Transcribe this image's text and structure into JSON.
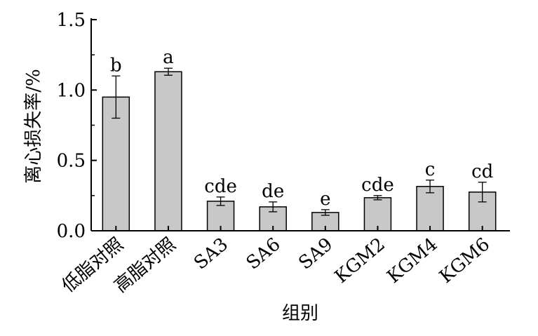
{
  "chart_data": {
    "type": "bar",
    "categories": [
      "低脂对照",
      "高脂对照",
      "SA3",
      "SA6",
      "SA9",
      "KGM2",
      "KGM4",
      "KGM6"
    ],
    "values": [
      0.95,
      1.13,
      0.21,
      0.17,
      0.13,
      0.235,
      0.315,
      0.275
    ],
    "errors": [
      0.15,
      0.025,
      0.03,
      0.035,
      0.02,
      0.015,
      0.045,
      0.07
    ],
    "significance_labels": [
      "b",
      "a",
      "cde",
      "de",
      "e",
      "cde",
      "c",
      "cd"
    ],
    "xlabel": "组别",
    "ylabel": "离心损失率/%",
    "ylim": [
      0,
      1.5
    ],
    "yticks": [
      "0.0",
      "0.5",
      "1.0",
      "1.5"
    ],
    "grid": false,
    "colors": {
      "bar_fill": "#c8c8c8",
      "bar_stroke": "#000000",
      "axis": "#000000"
    }
  }
}
